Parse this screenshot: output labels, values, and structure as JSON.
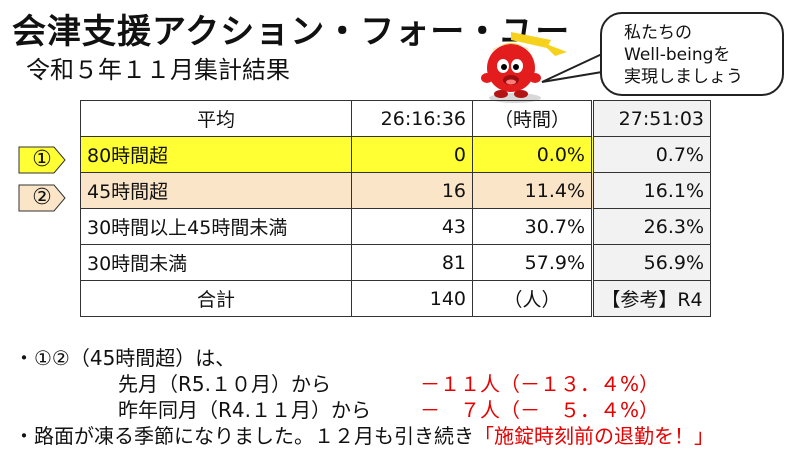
{
  "header": {
    "title": "会津支援アクション・フォー・ユー",
    "subtitle": "令和５年１１月集計結果"
  },
  "bubble": {
    "lines": [
      "私たちの",
      "Well-beingを",
      "実現しましょう"
    ]
  },
  "table": {
    "header_row": {
      "label": "平均",
      "value": "26:16:36",
      "unit": "（時間）",
      "ref": "27:51:03"
    },
    "rows": [
      {
        "marker": "①",
        "label": "80時間超",
        "count": "0",
        "pct": "0.0%",
        "ref": "0.7%"
      },
      {
        "marker": "②",
        "label": "45時間超",
        "count": "16",
        "pct": "11.4%",
        "ref": "16.1%"
      },
      {
        "marker": "",
        "label": "30時間以上45時間未満",
        "count": "43",
        "pct": "30.7%",
        "ref": "26.3%"
      },
      {
        "marker": "",
        "label": "30時間未満",
        "count": "81",
        "pct": "57.9%",
        "ref": "56.9%"
      }
    ],
    "total_row": {
      "label": "合計",
      "value": "140",
      "unit": "（人）",
      "ref": "【参考】R4"
    }
  },
  "notes": {
    "bullet1": "・①②（45時間超）は、",
    "line2_label": "先月（R5.１０月）から",
    "line2_value": "－１１人（－１３．４%）",
    "line3_label": "昨年同月（R4.１１月）から",
    "line3_value": "－　７人（－　５．４%）",
    "bullet2": "・路面が凍る季節になりました。１２月も引き続き",
    "bullet2_red": "「施錠時刻前の退勤を！」"
  },
  "colors": {
    "highlight_80": "#ffff33",
    "highlight_45": "#fbe5c8",
    "ref_bg": "#f2f2f2",
    "accent_red": "#e60000"
  }
}
